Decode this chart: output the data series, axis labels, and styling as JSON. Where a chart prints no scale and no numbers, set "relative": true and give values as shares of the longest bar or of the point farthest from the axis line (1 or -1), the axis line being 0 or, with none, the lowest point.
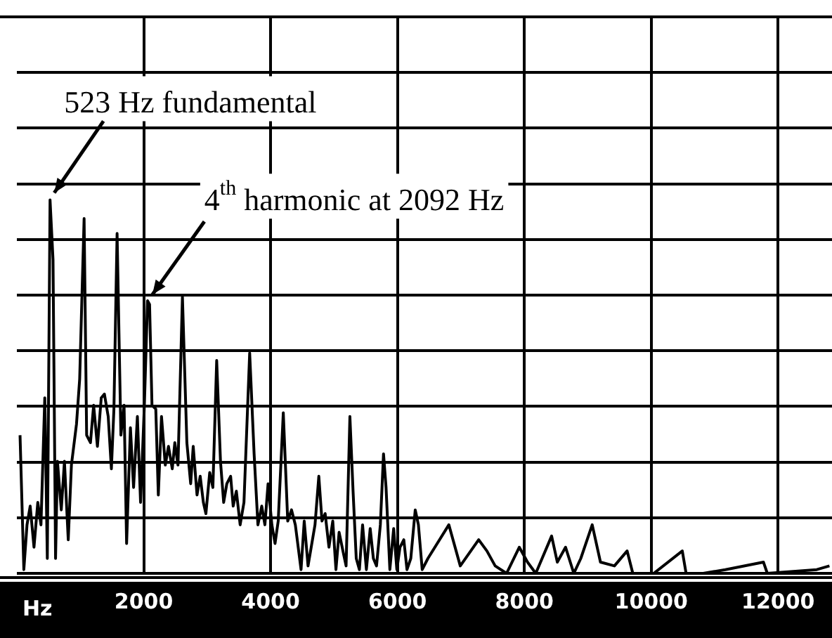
{
  "chart_data": {
    "type": "line",
    "xlabel": "Hz",
    "relative": true,
    "xlim": [
      0,
      12850
    ],
    "xticks": [
      2000,
      4000,
      6000,
      8000,
      10000,
      12000
    ],
    "grid": true,
    "marker": "none",
    "line_style": "solid",
    "annotations": [
      {
        "text": "523 Hz fundamental",
        "x": 523,
        "y": 1
      },
      {
        "text": "4$^{th}$ harmonic at 2092 Hz",
        "x": 2092,
        "y": 0.72
      }
    ],
    "series": [
      {
        "color": "#000000",
        "x": [
          50,
          110,
          160,
          210,
          270,
          330,
          380,
          440,
          480,
          523,
          570,
          610,
          640,
          700,
          750,
          810,
          860,
          940,
          990,
          1060,
          1100,
          1160,
          1210,
          1270,
          1330,
          1380,
          1440,
          1490,
          1530,
          1580,
          1640,
          1690,
          1730,
          1790,
          1840,
          1900,
          1950,
          2010,
          2060,
          2092,
          2130,
          2190,
          2230,
          2280,
          2340,
          2390,
          2450,
          2490,
          2540,
          2610,
          2680,
          2740,
          2780,
          2840,
          2890,
          2940,
          2980,
          3040,
          3090,
          3150,
          3210,
          3260,
          3310,
          3370,
          3410,
          3460,
          3520,
          3580,
          3670,
          3740,
          3800,
          3860,
          3910,
          3960,
          4020,
          4070,
          4120,
          4200,
          4270,
          4330,
          4390,
          4480,
          4530,
          4590,
          4640,
          4700,
          4760,
          4810,
          4860,
          4920,
          4980,
          5030,
          5080,
          5140,
          5190,
          5250,
          5300,
          5350,
          5400,
          5450,
          5510,
          5570,
          5620,
          5670,
          5730,
          5780,
          5820,
          5880,
          5940,
          5990,
          6040,
          6100,
          6150,
          6210,
          6280,
          6330,
          6390,
          6480,
          6810,
          6990,
          7280,
          7410,
          7540,
          7720,
          7920,
          8050,
          8180,
          8430,
          8520,
          8650,
          8780,
          8890,
          9070,
          9200,
          9420,
          9620,
          9710,
          10040,
          10490,
          10550,
          10820,
          11170,
          11770,
          11830,
          12610,
          12810
        ],
        "values": [
          0.37,
          0.01,
          0.13,
          0.18,
          0.07,
          0.19,
          0.13,
          0.47,
          0.04,
          1,
          0.84,
          0.04,
          0.3,
          0.17,
          0.3,
          0.09,
          0.29,
          0.4,
          0.52,
          0.95,
          0.37,
          0.35,
          0.45,
          0.34,
          0.47,
          0.48,
          0.42,
          0.28,
          0.44,
          0.91,
          0.37,
          0.45,
          0.08,
          0.39,
          0.23,
          0.42,
          0.19,
          0.45,
          0.73,
          0.72,
          0.45,
          0.44,
          0.21,
          0.42,
          0.29,
          0.34,
          0.28,
          0.35,
          0.29,
          0.74,
          0.35,
          0.24,
          0.34,
          0.21,
          0.26,
          0.19,
          0.16,
          0.27,
          0.23,
          0.57,
          0.3,
          0.19,
          0.24,
          0.26,
          0.18,
          0.22,
          0.13,
          0.19,
          0.59,
          0.32,
          0.13,
          0.18,
          0.13,
          0.24,
          0.13,
          0.08,
          0.14,
          0.43,
          0.14,
          0.17,
          0.13,
          0.01,
          0.14,
          0.02,
          0.07,
          0.13,
          0.26,
          0.14,
          0.16,
          0.07,
          0.14,
          0.01,
          0.11,
          0.06,
          0.02,
          0.42,
          0.22,
          0.04,
          0.01,
          0.13,
          0.01,
          0.12,
          0.04,
          0.02,
          0.13,
          0.32,
          0.23,
          0.01,
          0.12,
          0.01,
          0.07,
          0.09,
          0.01,
          0.04,
          0.17,
          0.13,
          0.01,
          0.04,
          0.13,
          0.02,
          0.09,
          0.06,
          0.02,
          0,
          0.07,
          0.03,
          0,
          0.1,
          0.03,
          0.07,
          0,
          0.04,
          0.13,
          0.03,
          0.02,
          0.06,
          0,
          0,
          0.06,
          0,
          0,
          0.01,
          0.03,
          0,
          0.01,
          0.02
        ]
      }
    ]
  }
}
